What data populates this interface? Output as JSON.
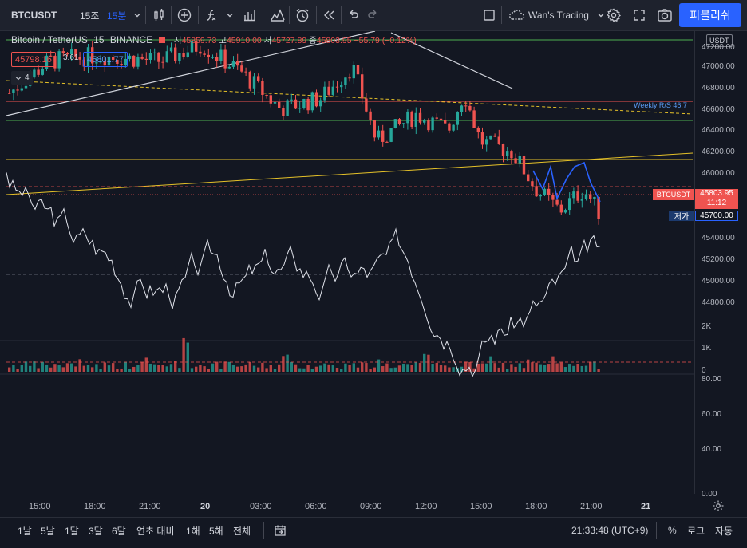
{
  "toolbar": {
    "symbol": "BTCUSDT",
    "interval_short": "15조",
    "interval_active": "15분",
    "layout_name": "Wan's Trading",
    "publish_label": "퍼블리쉬"
  },
  "legend": {
    "title": "Bitcoin / TetherUS",
    "interval": "15",
    "exchange": "BINANCE",
    "open_label": "시",
    "open": "45859.73",
    "high_label": "고",
    "high": "45910.00",
    "low_label": "저",
    "low": "45727.89",
    "close_label": "종",
    "close": "45803.95",
    "change": "−55.79 (−0.12%)",
    "bid": "45798.16",
    "spread": "3.61",
    "ask": "45801.77",
    "collapse_count": "4"
  },
  "price_axis": {
    "currency": "USDT",
    "labels": [
      "47200.00",
      "47000.00",
      "46800.00",
      "46600.00",
      "46400.00",
      "46200.00",
      "46000.00",
      "45400.00",
      "45200.00",
      "45000.00",
      "44800.00"
    ],
    "symbol_tag": "BTCUSDT",
    "last_price": "45803.95",
    "countdown": "11:12",
    "low_tag": "저가",
    "low_price": "45700.00",
    "volume_labels": [
      "2K",
      "1K",
      "0"
    ],
    "rsi_labels": [
      "80.00",
      "60.00",
      "40.00",
      "0.00"
    ]
  },
  "annotations": {
    "weekly_rs": "Weekly R/S 46.7"
  },
  "time_axis": [
    "15:00",
    "18:00",
    "21:00",
    "20",
    "03:00",
    "06:00",
    "09:00",
    "12:00",
    "15:00",
    "18:00",
    "21:00",
    "21"
  ],
  "bottom_bar": {
    "ranges": [
      "1날",
      "5날",
      "1달",
      "3달",
      "6달",
      "연초 대비",
      "1해",
      "5해",
      "전체"
    ],
    "clock": "21:33:48 (UTC+9)",
    "percent": "%",
    "log": "로그",
    "auto": "자동"
  },
  "colors": {
    "background": "#131722",
    "up": "#26a69a",
    "down": "#ef5350",
    "accent": "#2962ff",
    "yellow_line": "#e6c229",
    "green_line": "#4caf50",
    "red_line": "#ef5350"
  }
}
